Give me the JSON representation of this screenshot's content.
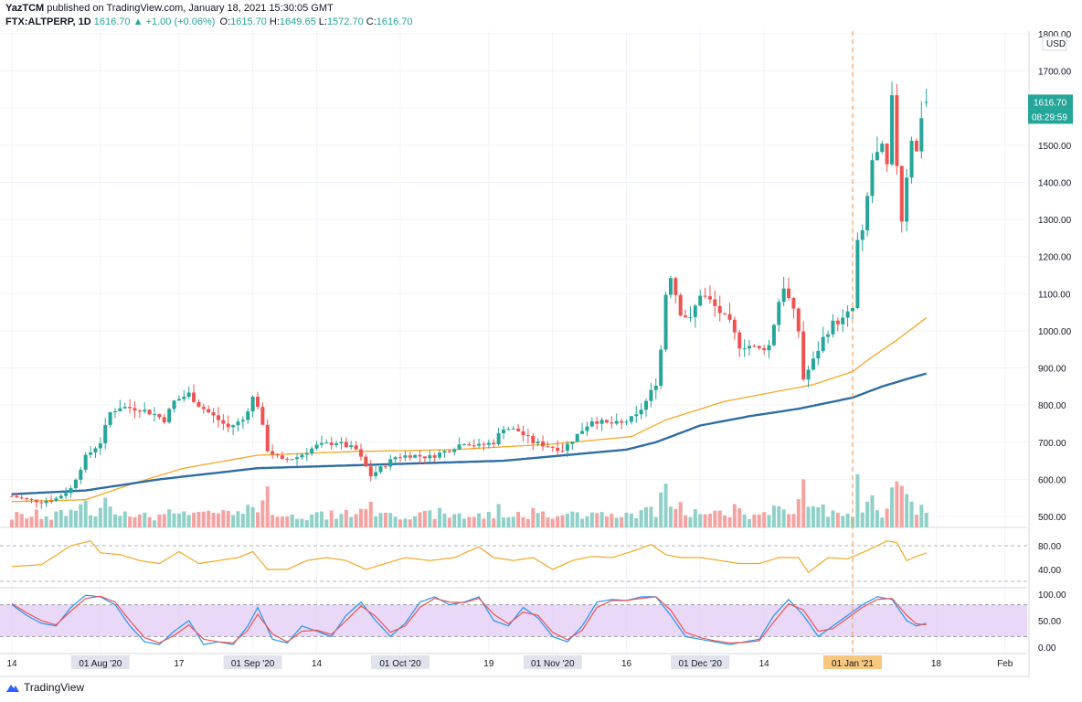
{
  "header": {
    "author": "YazTCM",
    "published": "published on TradingView.com, January 18, 2021 15:30:05 GMT",
    "symbol": "FTX:ALTPERP, 1D",
    "last": "1616.70",
    "change_arrow": "▲",
    "change": "+1.00 (+0.06%)",
    "o_label": "O:",
    "o_value": "1615.70",
    "h_label": "H:",
    "h_value": "1649.65",
    "l_label": "L:",
    "l_value": "1572.70",
    "c_label": "C:",
    "c_value": "1616.70"
  },
  "footer": {
    "brand": "TradingView"
  },
  "colors": {
    "up": "#26a69a",
    "down": "#ef5350",
    "vol_up": "#8fd1c8",
    "vol_down": "#f4a3a1",
    "ma_fast": "#f5a623",
    "ma_slow": "#2e6da4",
    "indicator": "#f5a623",
    "stoch_k": "#2196f3",
    "stoch_d": "#ef5350",
    "stoch_band": "#e1c8f7"
  },
  "chart_data": {
    "type": "candlestick",
    "currency": "USD",
    "y_ticks": [
      1800,
      1700,
      1600,
      1500,
      1400,
      1300,
      1200,
      1100,
      1000,
      900,
      800,
      700,
      600,
      500
    ],
    "ylim": [
      480,
      1800
    ],
    "x_labels": [
      {
        "text": "14",
        "day": 0
      },
      {
        "text": "01 Aug '20",
        "day": 18,
        "boxed": true
      },
      {
        "text": "17",
        "day": 34
      },
      {
        "text": "01 Sep '20",
        "day": 49,
        "boxed": true
      },
      {
        "text": "14",
        "day": 62
      },
      {
        "text": "01 Oct '20",
        "day": 79,
        "boxed": true
      },
      {
        "text": "19",
        "day": 97
      },
      {
        "text": "01 Nov '20",
        "day": 110,
        "boxed": true
      },
      {
        "text": "16",
        "day": 125
      },
      {
        "text": "01 Dec '20",
        "day": 140,
        "boxed": true
      },
      {
        "text": "14",
        "day": 153
      },
      {
        "text": "01 Jan '21",
        "day": 171,
        "boxed": true,
        "highlight": true
      },
      {
        "text": "18",
        "day": 188
      },
      {
        "text": "Feb",
        "day": 202
      }
    ],
    "last_price_label": "1616.70",
    "countdown_label": "08:29:59",
    "event_marker_day": 171,
    "close_keypoints": [
      [
        0,
        555
      ],
      [
        3,
        545
      ],
      [
        6,
        540
      ],
      [
        9,
        548
      ],
      [
        12,
        575
      ],
      [
        15,
        660
      ],
      [
        18,
        700
      ],
      [
        20,
        780
      ],
      [
        22,
        795
      ],
      [
        26,
        790
      ],
      [
        29,
        775
      ],
      [
        31,
        760
      ],
      [
        33,
        810
      ],
      [
        36,
        830
      ],
      [
        38,
        800
      ],
      [
        41,
        770
      ],
      [
        44,
        740
      ],
      [
        47,
        760
      ],
      [
        49,
        820
      ],
      [
        50,
        800
      ],
      [
        52,
        680
      ],
      [
        55,
        650
      ],
      [
        58,
        660
      ],
      [
        62,
        690
      ],
      [
        66,
        700
      ],
      [
        70,
        680
      ],
      [
        73,
        610
      ],
      [
        75,
        630
      ],
      [
        78,
        660
      ],
      [
        81,
        665
      ],
      [
        85,
        660
      ],
      [
        89,
        680
      ],
      [
        92,
        700
      ],
      [
        95,
        690
      ],
      [
        98,
        700
      ],
      [
        100,
        740
      ],
      [
        103,
        730
      ],
      [
        106,
        700
      ],
      [
        109,
        690
      ],
      [
        112,
        680
      ],
      [
        115,
        720
      ],
      [
        118,
        760
      ],
      [
        121,
        750
      ],
      [
        124,
        750
      ],
      [
        127,
        770
      ],
      [
        129,
        810
      ],
      [
        131,
        860
      ],
      [
        132,
        950
      ],
      [
        133,
        1100
      ],
      [
        134,
        1150
      ],
      [
        136,
        1050
      ],
      [
        138,
        1030
      ],
      [
        140,
        1100
      ],
      [
        142,
        1080
      ],
      [
        144,
        1050
      ],
      [
        146,
        1020
      ],
      [
        148,
        960
      ],
      [
        150,
        960
      ],
      [
        152,
        950
      ],
      [
        154,
        960
      ],
      [
        156,
        1080
      ],
      [
        157,
        1120
      ],
      [
        159,
        1050
      ],
      [
        160,
        1000
      ],
      [
        161,
        870
      ],
      [
        163,
        920
      ],
      [
        165,
        980
      ],
      [
        167,
        1020
      ],
      [
        169,
        1030
      ],
      [
        171,
        1060
      ],
      [
        172,
        1240
      ],
      [
        173,
        1260
      ],
      [
        175,
        1460
      ],
      [
        177,
        1490
      ],
      [
        178,
        1440
      ],
      [
        179,
        1620
      ],
      [
        180,
        1450
      ],
      [
        181,
        1300
      ],
      [
        182,
        1420
      ],
      [
        183,
        1520
      ],
      [
        184,
        1480
      ],
      [
        185,
        1580
      ],
      [
        186,
        1616.7
      ]
    ],
    "ma_fast_keypoints": [
      [
        0,
        540
      ],
      [
        15,
        545
      ],
      [
        25,
        590
      ],
      [
        35,
        630
      ],
      [
        50,
        665
      ],
      [
        70,
        675
      ],
      [
        90,
        680
      ],
      [
        110,
        695
      ],
      [
        126,
        715
      ],
      [
        133,
        760
      ],
      [
        145,
        810
      ],
      [
        155,
        835
      ],
      [
        163,
        855
      ],
      [
        171,
        890
      ],
      [
        175,
        930
      ],
      [
        180,
        975
      ],
      [
        186,
        1035
      ]
    ],
    "ma_slow_keypoints": [
      [
        0,
        560
      ],
      [
        15,
        570
      ],
      [
        30,
        600
      ],
      [
        50,
        630
      ],
      [
        75,
        640
      ],
      [
        100,
        650
      ],
      [
        125,
        680
      ],
      [
        131,
        700
      ],
      [
        140,
        745
      ],
      [
        150,
        770
      ],
      [
        160,
        790
      ],
      [
        171,
        820
      ],
      [
        177,
        850
      ],
      [
        182,
        870
      ],
      [
        186,
        885
      ]
    ],
    "indicator": {
      "ticks": [
        80,
        40
      ],
      "ylim": [
        20,
        100
      ],
      "levels": [
        80,
        20
      ],
      "keypoints": [
        [
          0,
          45
        ],
        [
          6,
          48
        ],
        [
          12,
          80
        ],
        [
          16,
          88
        ],
        [
          18,
          68
        ],
        [
          22,
          65
        ],
        [
          26,
          55
        ],
        [
          30,
          50
        ],
        [
          34,
          70
        ],
        [
          38,
          50
        ],
        [
          42,
          55
        ],
        [
          46,
          60
        ],
        [
          49,
          70
        ],
        [
          52,
          40
        ],
        [
          56,
          40
        ],
        [
          60,
          55
        ],
        [
          64,
          60
        ],
        [
          68,
          55
        ],
        [
          72,
          40
        ],
        [
          76,
          50
        ],
        [
          80,
          60
        ],
        [
          85,
          55
        ],
        [
          90,
          60
        ],
        [
          95,
          78
        ],
        [
          98,
          60
        ],
        [
          102,
          55
        ],
        [
          106,
          60
        ],
        [
          110,
          40
        ],
        [
          114,
          55
        ],
        [
          118,
          62
        ],
        [
          122,
          60
        ],
        [
          126,
          70
        ],
        [
          130,
          82
        ],
        [
          133,
          65
        ],
        [
          136,
          60
        ],
        [
          140,
          60
        ],
        [
          144,
          55
        ],
        [
          148,
          50
        ],
        [
          152,
          50
        ],
        [
          156,
          60
        ],
        [
          160,
          60
        ],
        [
          162,
          35
        ],
        [
          166,
          60
        ],
        [
          170,
          58
        ],
        [
          174,
          72
        ],
        [
          178,
          88
        ],
        [
          180,
          85
        ],
        [
          182,
          55
        ],
        [
          184,
          62
        ],
        [
          186,
          68
        ]
      ]
    },
    "stoch_rsi": {
      "ticks": [
        100,
        50,
        0
      ],
      "ylim": [
        0,
        100
      ],
      "band": [
        20,
        80
      ],
      "k_keypoints": [
        [
          0,
          80
        ],
        [
          3,
          60
        ],
        [
          6,
          45
        ],
        [
          9,
          40
        ],
        [
          12,
          75
        ],
        [
          15,
          98
        ],
        [
          18,
          95
        ],
        [
          21,
          80
        ],
        [
          24,
          40
        ],
        [
          27,
          10
        ],
        [
          30,
          5
        ],
        [
          33,
          30
        ],
        [
          36,
          50
        ],
        [
          39,
          5
        ],
        [
          42,
          10
        ],
        [
          45,
          5
        ],
        [
          48,
          40
        ],
        [
          50,
          75
        ],
        [
          53,
          15
        ],
        [
          56,
          8
        ],
        [
          59,
          40
        ],
        [
          62,
          30
        ],
        [
          65,
          20
        ],
        [
          68,
          60
        ],
        [
          71,
          85
        ],
        [
          74,
          50
        ],
        [
          77,
          20
        ],
        [
          80,
          45
        ],
        [
          83,
          85
        ],
        [
          86,
          95
        ],
        [
          89,
          80
        ],
        [
          92,
          85
        ],
        [
          95,
          95
        ],
        [
          98,
          50
        ],
        [
          101,
          40
        ],
        [
          104,
          75
        ],
        [
          107,
          55
        ],
        [
          110,
          20
        ],
        [
          113,
          10
        ],
        [
          116,
          40
        ],
        [
          119,
          85
        ],
        [
          122,
          90
        ],
        [
          125,
          88
        ],
        [
          128,
          95
        ],
        [
          131,
          95
        ],
        [
          134,
          60
        ],
        [
          137,
          20
        ],
        [
          140,
          15
        ],
        [
          143,
          10
        ],
        [
          146,
          5
        ],
        [
          149,
          10
        ],
        [
          152,
          15
        ],
        [
          155,
          60
        ],
        [
          158,
          90
        ],
        [
          161,
          60
        ],
        [
          164,
          20
        ],
        [
          167,
          40
        ],
        [
          170,
          60
        ],
        [
          173,
          80
        ],
        [
          176,
          95
        ],
        [
          179,
          90
        ],
        [
          182,
          50
        ],
        [
          184,
          40
        ],
        [
          186,
          45
        ]
      ],
      "d_keypoints": [
        [
          0,
          82
        ],
        [
          3,
          65
        ],
        [
          6,
          50
        ],
        [
          9,
          42
        ],
        [
          12,
          68
        ],
        [
          15,
          92
        ],
        [
          18,
          96
        ],
        [
          21,
          85
        ],
        [
          24,
          50
        ],
        [
          27,
          18
        ],
        [
          30,
          8
        ],
        [
          33,
          22
        ],
        [
          36,
          42
        ],
        [
          39,
          15
        ],
        [
          42,
          10
        ],
        [
          45,
          8
        ],
        [
          48,
          32
        ],
        [
          50,
          62
        ],
        [
          53,
          25
        ],
        [
          56,
          10
        ],
        [
          59,
          30
        ],
        [
          62,
          32
        ],
        [
          65,
          24
        ],
        [
          68,
          50
        ],
        [
          71,
          78
        ],
        [
          74,
          58
        ],
        [
          77,
          28
        ],
        [
          80,
          40
        ],
        [
          83,
          75
        ],
        [
          86,
          92
        ],
        [
          89,
          85
        ],
        [
          92,
          84
        ],
        [
          95,
          92
        ],
        [
          98,
          62
        ],
        [
          101,
          44
        ],
        [
          104,
          66
        ],
        [
          107,
          60
        ],
        [
          110,
          28
        ],
        [
          113,
          14
        ],
        [
          116,
          32
        ],
        [
          119,
          75
        ],
        [
          122,
          88
        ],
        [
          125,
          88
        ],
        [
          128,
          92
        ],
        [
          131,
          95
        ],
        [
          134,
          70
        ],
        [
          137,
          28
        ],
        [
          140,
          18
        ],
        [
          143,
          12
        ],
        [
          146,
          8
        ],
        [
          149,
          9
        ],
        [
          152,
          12
        ],
        [
          155,
          48
        ],
        [
          158,
          82
        ],
        [
          161,
          70
        ],
        [
          164,
          30
        ],
        [
          167,
          35
        ],
        [
          170,
          55
        ],
        [
          173,
          75
        ],
        [
          176,
          90
        ],
        [
          179,
          92
        ],
        [
          182,
          60
        ],
        [
          184,
          44
        ],
        [
          186,
          42
        ]
      ]
    }
  }
}
